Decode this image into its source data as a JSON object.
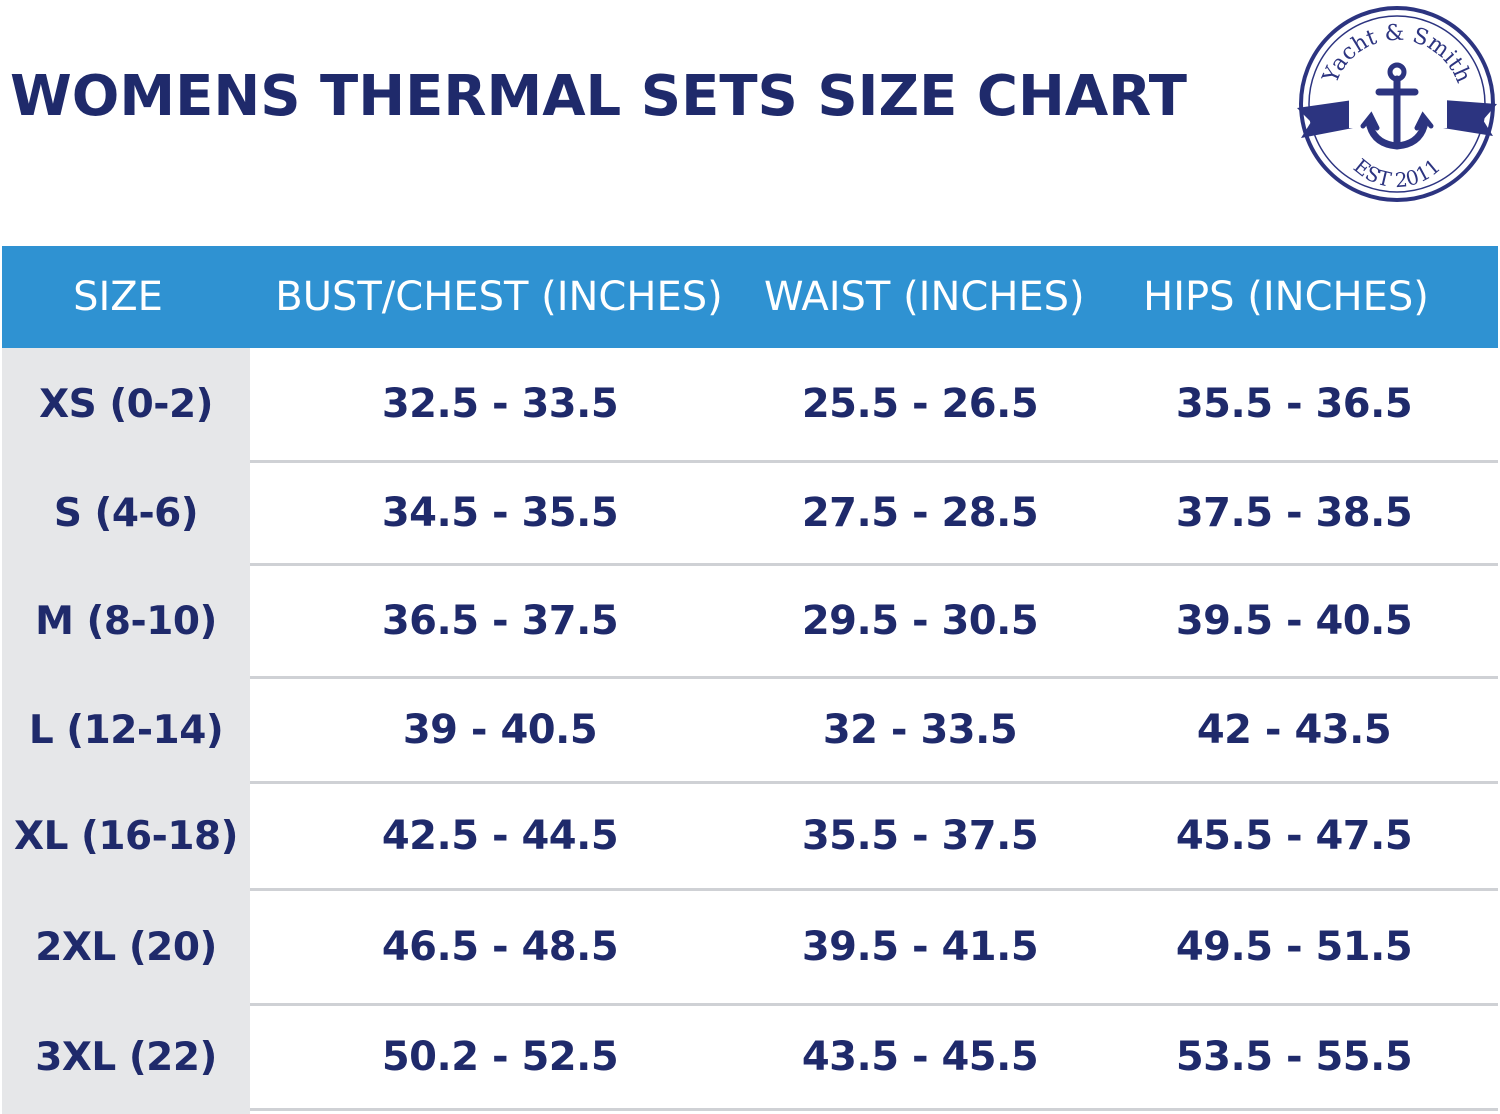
{
  "title": "WOMENS THERMAL SETS SIZE CHART",
  "logo": {
    "brand_text": "Yacht & Smith",
    "est_text": "EST 2011",
    "icon": "anchor-icon",
    "color": "#2c3480"
  },
  "colors": {
    "header_bg": "#2f92d2",
    "text": "#1f2a6b",
    "size_column_bg": "#e6e7e9",
    "divider": "#cfd1d5"
  },
  "table": {
    "headers": [
      "SIZE",
      "BUST/CHEST (INCHES)",
      "WAIST (INCHES)",
      "HIPS (INCHES)"
    ],
    "rows": [
      [
        "XS (0-2)",
        "32.5 - 33.5",
        "25.5 - 26.5",
        "35.5 - 36.5"
      ],
      [
        "S (4-6)",
        "34.5 - 35.5",
        "27.5 - 28.5",
        "37.5 - 38.5"
      ],
      [
        "M (8-10)",
        "36.5 - 37.5",
        "29.5 - 30.5",
        "39.5 - 40.5"
      ],
      [
        "L (12-14)",
        "39 - 40.5",
        "32 - 33.5",
        "42 - 43.5"
      ],
      [
        "XL (16-18)",
        "42.5 - 44.5",
        "35.5 - 37.5",
        "45.5 - 47.5"
      ],
      [
        "2XL (20)",
        "46.5 - 48.5",
        "39.5 - 41.5",
        "49.5 - 51.5"
      ],
      [
        "3XL (22)",
        "50.2 - 52.5",
        "43.5 - 45.5",
        "53.5 - 55.5"
      ]
    ]
  }
}
